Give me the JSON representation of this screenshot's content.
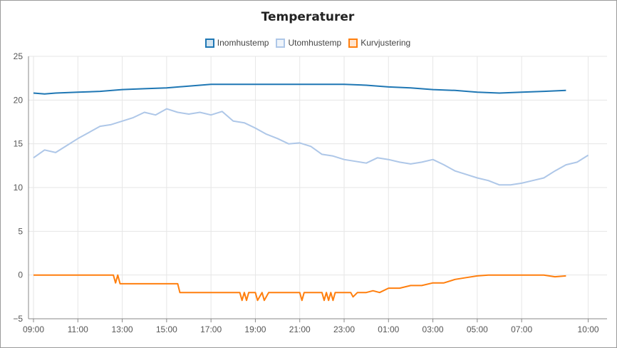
{
  "chart_data": {
    "type": "line",
    "title": "Temperaturer",
    "x_tick_labels": [
      "09:00",
      "11:00",
      "13:00",
      "15:00",
      "17:00",
      "19:00",
      "21:00",
      "23:00",
      "01:00",
      "03:00",
      "05:00",
      "07:00",
      "10:00"
    ],
    "x_tick_hours": [
      0,
      2,
      4,
      6,
      8,
      10,
      12,
      14,
      16,
      18,
      20,
      22,
      25
    ],
    "xlim_hours": [
      0,
      25
    ],
    "ylim": [
      -5,
      25
    ],
    "y_ticks": [
      -5,
      0,
      5,
      10,
      15,
      20,
      25
    ],
    "y_tick_labels": [
      "−5",
      "0",
      "5",
      "10",
      "15",
      "20",
      "25"
    ],
    "grid": true,
    "legend_position": "top-center",
    "series": [
      {
        "name": "Inomhustemp",
        "color": "#1f77b4",
        "points": [
          [
            0,
            20.8
          ],
          [
            0.5,
            20.7
          ],
          [
            1,
            20.8
          ],
          [
            2,
            20.9
          ],
          [
            3,
            21.0
          ],
          [
            4,
            21.2
          ],
          [
            5,
            21.3
          ],
          [
            6,
            21.4
          ],
          [
            7,
            21.6
          ],
          [
            8,
            21.8
          ],
          [
            9,
            21.8
          ],
          [
            10,
            21.8
          ],
          [
            11,
            21.8
          ],
          [
            12,
            21.8
          ],
          [
            13,
            21.8
          ],
          [
            14,
            21.8
          ],
          [
            15,
            21.7
          ],
          [
            16,
            21.5
          ],
          [
            17,
            21.4
          ],
          [
            18,
            21.2
          ],
          [
            19,
            21.1
          ],
          [
            20,
            20.9
          ],
          [
            21,
            20.8
          ],
          [
            22,
            20.9
          ],
          [
            23,
            21.0
          ],
          [
            24,
            21.1
          ]
        ]
      },
      {
        "name": "Utomhustemp",
        "color": "#aec7e8",
        "points": [
          [
            0,
            13.4
          ],
          [
            0.5,
            14.3
          ],
          [
            1,
            14.0
          ],
          [
            1.5,
            14.8
          ],
          [
            2,
            15.6
          ],
          [
            2.5,
            16.3
          ],
          [
            3,
            17.0
          ],
          [
            3.5,
            17.2
          ],
          [
            4,
            17.6
          ],
          [
            4.5,
            18.0
          ],
          [
            5,
            18.6
          ],
          [
            5.5,
            18.3
          ],
          [
            6,
            19.0
          ],
          [
            6.5,
            18.6
          ],
          [
            7,
            18.4
          ],
          [
            7.5,
            18.6
          ],
          [
            8,
            18.3
          ],
          [
            8.5,
            18.7
          ],
          [
            9,
            17.6
          ],
          [
            9.5,
            17.4
          ],
          [
            10,
            16.8
          ],
          [
            10.5,
            16.1
          ],
          [
            11,
            15.6
          ],
          [
            11.5,
            15.0
          ],
          [
            12,
            15.1
          ],
          [
            12.5,
            14.7
          ],
          [
            13,
            13.8
          ],
          [
            13.5,
            13.6
          ],
          [
            14,
            13.2
          ],
          [
            14.5,
            13.0
          ],
          [
            15,
            12.8
          ],
          [
            15.5,
            13.4
          ],
          [
            16,
            13.2
          ],
          [
            16.5,
            12.9
          ],
          [
            17,
            12.7
          ],
          [
            17.5,
            12.9
          ],
          [
            18,
            13.2
          ],
          [
            18.5,
            12.6
          ],
          [
            19,
            11.9
          ],
          [
            19.5,
            11.5
          ],
          [
            20,
            11.1
          ],
          [
            20.5,
            10.8
          ],
          [
            21,
            10.3
          ],
          [
            21.5,
            10.3
          ],
          [
            22,
            10.5
          ],
          [
            22.5,
            10.8
          ],
          [
            23,
            11.1
          ],
          [
            23.5,
            11.9
          ],
          [
            24,
            12.6
          ],
          [
            24.5,
            12.9
          ],
          [
            25,
            13.7
          ]
        ]
      },
      {
        "name": "Kurvjustering",
        "color": "#ff7f0e",
        "points": [
          [
            0,
            0
          ],
          [
            3.6,
            0
          ],
          [
            3.7,
            -0.9
          ],
          [
            3.8,
            0
          ],
          [
            3.9,
            -1.0
          ],
          [
            6.5,
            -1.0
          ],
          [
            6.6,
            -2.0
          ],
          [
            9.3,
            -2.0
          ],
          [
            9.4,
            -2.9
          ],
          [
            9.5,
            -2.0
          ],
          [
            9.6,
            -2.9
          ],
          [
            9.7,
            -2.0
          ],
          [
            10.0,
            -2.0
          ],
          [
            10.1,
            -2.9
          ],
          [
            10.3,
            -2.0
          ],
          [
            10.4,
            -2.9
          ],
          [
            10.6,
            -2.0
          ],
          [
            12.0,
            -2.0
          ],
          [
            12.1,
            -2.9
          ],
          [
            12.2,
            -2.0
          ],
          [
            13.0,
            -2.0
          ],
          [
            13.1,
            -2.9
          ],
          [
            13.2,
            -2.0
          ],
          [
            13.3,
            -2.9
          ],
          [
            13.4,
            -2.0
          ],
          [
            13.5,
            -2.9
          ],
          [
            13.6,
            -2.0
          ],
          [
            14.3,
            -2.0
          ],
          [
            14.4,
            -2.5
          ],
          [
            14.6,
            -2.0
          ],
          [
            15.0,
            -2.0
          ],
          [
            15.3,
            -1.8
          ],
          [
            15.6,
            -2.0
          ],
          [
            16.0,
            -1.5
          ],
          [
            16.5,
            -1.5
          ],
          [
            17.0,
            -1.2
          ],
          [
            17.5,
            -1.2
          ],
          [
            18.0,
            -0.9
          ],
          [
            18.5,
            -0.9
          ],
          [
            19.0,
            -0.5
          ],
          [
            19.5,
            -0.3
          ],
          [
            20.0,
            -0.1
          ],
          [
            20.5,
            0
          ],
          [
            21.0,
            0
          ],
          [
            23.0,
            0
          ],
          [
            23.5,
            -0.2
          ],
          [
            24.0,
            -0.1
          ]
        ]
      }
    ]
  }
}
